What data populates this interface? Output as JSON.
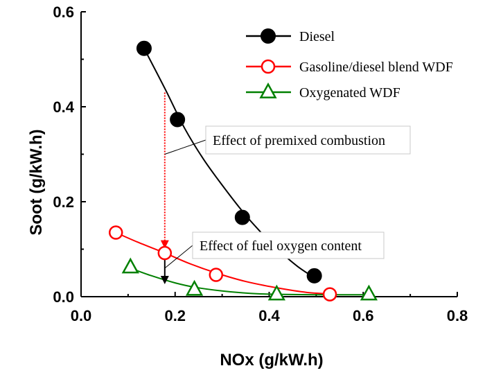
{
  "chart_data": {
    "type": "scatter",
    "title": "",
    "xlabel": "NOx (g/kW.h)",
    "ylabel": "Soot (g/kW.h)",
    "xlim": [
      0.0,
      0.8
    ],
    "ylim": [
      0.0,
      0.6
    ],
    "xticks": [
      "0.0",
      "0.2",
      "0.4",
      "0.6",
      "0.8"
    ],
    "yticks": [
      "0.0",
      "0.2",
      "0.4",
      "0.6"
    ],
    "grid": false,
    "legend_position": "top-right",
    "series": [
      {
        "name": "Diesel",
        "color": "#000000",
        "marker": "filled-circle",
        "points": [
          [
            0.134,
            0.523
          ],
          [
            0.205,
            0.373
          ],
          [
            0.343,
            0.167
          ],
          [
            0.496,
            0.044
          ]
        ],
        "fit": [
          [
            0.134,
            0.523
          ],
          [
            0.18,
            0.435
          ],
          [
            0.22,
            0.355
          ],
          [
            0.26,
            0.29
          ],
          [
            0.3,
            0.235
          ],
          [
            0.343,
            0.18
          ],
          [
            0.38,
            0.138
          ],
          [
            0.42,
            0.098
          ],
          [
            0.46,
            0.064
          ],
          [
            0.496,
            0.04
          ]
        ]
      },
      {
        "name": "Gasoline/diesel blend WDF",
        "color": "#ff0000",
        "marker": "open-circle",
        "points": [
          [
            0.074,
            0.135
          ],
          [
            0.178,
            0.092
          ],
          [
            0.287,
            0.046
          ],
          [
            0.529,
            0.005
          ]
        ],
        "fit": [
          [
            0.074,
            0.135
          ],
          [
            0.12,
            0.115
          ],
          [
            0.178,
            0.092
          ],
          [
            0.23,
            0.07
          ],
          [
            0.287,
            0.05
          ],
          [
            0.35,
            0.032
          ],
          [
            0.42,
            0.018
          ],
          [
            0.48,
            0.009
          ],
          [
            0.529,
            0.006
          ]
        ]
      },
      {
        "name": "Oxygenated WDF",
        "color": "#008000",
        "marker": "open-triangle",
        "points": [
          [
            0.105,
            0.062
          ],
          [
            0.241,
            0.015
          ],
          [
            0.416,
            0.005
          ],
          [
            0.612,
            0.005
          ]
        ],
        "fit": [
          [
            0.105,
            0.06
          ],
          [
            0.15,
            0.044
          ],
          [
            0.2,
            0.029
          ],
          [
            0.241,
            0.02
          ],
          [
            0.3,
            0.012
          ],
          [
            0.36,
            0.007
          ],
          [
            0.416,
            0.005
          ],
          [
            0.5,
            0.004
          ],
          [
            0.612,
            0.004
          ]
        ]
      }
    ],
    "annotations": [
      {
        "text": "Effect of premixed combustion",
        "target": [
          0.178,
          0.3
        ]
      },
      {
        "text": "Effect of fuel oxygen content",
        "target": [
          0.178,
          0.06
        ]
      }
    ],
    "arrows": [
      {
        "from": [
          0.178,
          0.43
        ],
        "to": [
          0.178,
          0.11
        ],
        "color": "#ff0000",
        "style": "dotted"
      },
      {
        "from": [
          0.178,
          0.085
        ],
        "to": [
          0.178,
          0.035
        ],
        "color": "#000000",
        "style": "solid"
      }
    ]
  }
}
